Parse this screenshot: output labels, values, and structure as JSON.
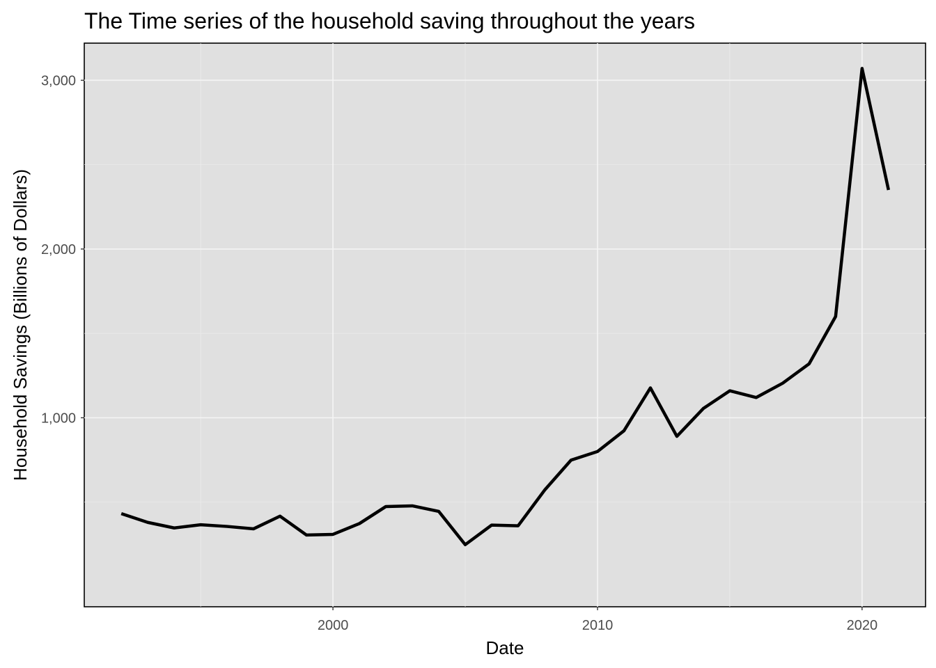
{
  "chart_data": {
    "type": "line",
    "title": "The Time series of the household saving throughout the years",
    "xlabel": "Date",
    "ylabel": "Household Savings (Billions of Dollars)",
    "xlim": [
      1990.6,
      2022.4
    ],
    "ylim": [
      -120,
      3220
    ],
    "x_ticks": [
      2000,
      2010,
      2020
    ],
    "x_tick_labels": [
      "2000",
      "2010",
      "2020"
    ],
    "y_ticks": [
      1000,
      2000,
      3000
    ],
    "y_tick_labels": [
      "1,000",
      "2,000",
      "3,000"
    ],
    "grid": true,
    "legend": "none",
    "series": [
      {
        "color": "#000000",
        "x": [
          1992,
          1993,
          1994,
          1995,
          1996,
          1997,
          1998,
          1999,
          2000,
          2001,
          2002,
          2003,
          2004,
          2005,
          2006,
          2007,
          2008,
          2009,
          2010,
          2011,
          2012,
          2013,
          2014,
          2015,
          2016,
          2017,
          2018,
          2019,
          2020,
          2021
        ],
        "y": [
          432,
          380,
          347,
          366,
          356,
          342,
          417,
          305,
          309,
          373,
          474,
          478,
          445,
          248,
          364,
          360,
          571,
          749,
          800,
          923,
          1177,
          890,
          1055,
          1160,
          1120,
          1205,
          1320,
          1600,
          3070,
          2350
        ]
      }
    ]
  }
}
